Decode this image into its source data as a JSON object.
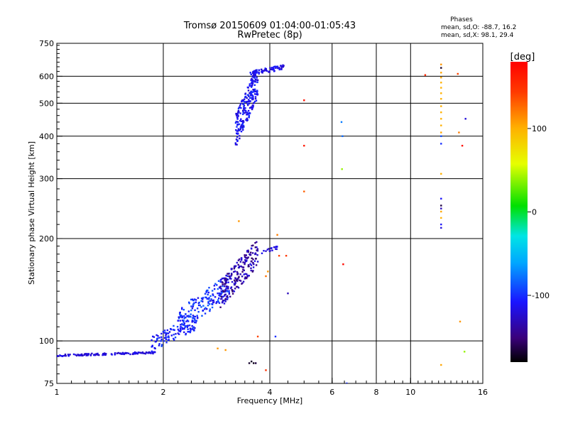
{
  "chart_data": {
    "type": "scatter",
    "title": "Tromsø 20150609 01:04:00-01:05:43",
    "subtitle": "RwPretec (8p)",
    "xlabel": "Frequency [MHz]",
    "ylabel": "Stationary phase Virtual Height [km]",
    "x_scale": "log",
    "y_scale": "log",
    "xlim": [
      1,
      16
    ],
    "ylim": [
      75,
      750
    ],
    "x_ticks": [
      1,
      2,
      4,
      6,
      8,
      10,
      16
    ],
    "x_tick_labels": [
      "1",
      "2",
      "4",
      "6",
      "8",
      "10",
      "16"
    ],
    "y_ticks": [
      75,
      100,
      200,
      300,
      400,
      500,
      600,
      750
    ],
    "y_tick_labels": [
      "75",
      "100",
      "200",
      "300",
      "400",
      "500",
      "600",
      "750"
    ],
    "grid": true,
    "phase_stats": {
      "heading": "Phases",
      "line_o": "mean, sd,O: -88.7, 16.2",
      "line_x": "mean, sd,X:  98.1, 29.4"
    },
    "colorbar": {
      "label": "[deg]",
      "range": [
        -180,
        180
      ],
      "ticks": [
        100,
        0,
        -100
      ],
      "tick_labels": [
        "100",
        "0",
        "-100"
      ],
      "colormap": "rainbow (black→violet→blue→cyan→green→yellow→orange→red)"
    },
    "clusters": [
      {
        "name": "lower-layer-trace",
        "x": [
          1.0,
          1.9
        ],
        "y": [
          90,
          93
        ],
        "count": 140,
        "phase": -120,
        "spread": 10
      },
      {
        "name": "low-oblique-1",
        "x": [
          1.85,
          2.5
        ],
        "y": [
          93,
          120
        ],
        "count": 110,
        "phase": -105,
        "spread": 15
      },
      {
        "name": "low-oblique-2",
        "x": [
          2.2,
          3.1
        ],
        "y": [
          105,
          160
        ],
        "count": 170,
        "phase": -100,
        "spread": 18
      },
      {
        "name": "low-oblique-3",
        "x": [
          2.9,
          3.7
        ],
        "y": [
          125,
          200
        ],
        "count": 190,
        "phase": -135,
        "spread": 22
      },
      {
        "name": "f-trace",
        "x": [
          3.2,
          3.7
        ],
        "y": [
          370,
          650
        ],
        "count": 230,
        "phase": -112,
        "spread": 15
      },
      {
        "name": "f-top",
        "x": [
          3.5,
          4.4
        ],
        "y": [
          600,
          650
        ],
        "count": 60,
        "phase": -115,
        "spread": 12
      },
      {
        "name": "mid-cluster",
        "x": [
          3.8,
          4.2
        ],
        "y": [
          180,
          190
        ],
        "count": 18,
        "phase": -118,
        "spread": 10
      }
    ],
    "points": [
      {
        "x": 3.27,
        "y": 225,
        "phase": 110
      },
      {
        "x": 4.2,
        "y": 205,
        "phase": 120
      },
      {
        "x": 3.9,
        "y": 155,
        "phase": 125
      },
      {
        "x": 3.95,
        "y": 160,
        "phase": 110
      },
      {
        "x": 4.25,
        "y": 178,
        "phase": 140
      },
      {
        "x": 4.45,
        "y": 178,
        "phase": 145
      },
      {
        "x": 4.5,
        "y": 138,
        "phase": -130
      },
      {
        "x": 3.7,
        "y": 103,
        "phase": 140
      },
      {
        "x": 3.9,
        "y": 82,
        "phase": 150
      },
      {
        "x": 4.15,
        "y": 103,
        "phase": -100
      },
      {
        "x": 3.0,
        "y": 94,
        "phase": 110
      },
      {
        "x": 2.85,
        "y": 95,
        "phase": 110
      },
      {
        "x": 3.55,
        "y": 87,
        "phase": -170
      },
      {
        "x": 3.6,
        "y": 86,
        "phase": -175
      },
      {
        "x": 3.65,
        "y": 86,
        "phase": -165
      },
      {
        "x": 3.5,
        "y": 86,
        "phase": -170
      },
      {
        "x": 5.0,
        "y": 510,
        "phase": 170
      },
      {
        "x": 5.0,
        "y": 375,
        "phase": 165
      },
      {
        "x": 5.0,
        "y": 275,
        "phase": 130
      },
      {
        "x": 6.45,
        "y": 168,
        "phase": 175
      },
      {
        "x": 6.4,
        "y": 320,
        "phase": 40
      },
      {
        "x": 6.42,
        "y": 400,
        "phase": -80
      },
      {
        "x": 6.38,
        "y": 440,
        "phase": -75
      },
      {
        "x": 6.6,
        "y": 75,
        "phase": -100
      },
      {
        "x": 11.0,
        "y": 605,
        "phase": 155
      },
      {
        "x": 12.2,
        "y": 650,
        "phase": 110
      },
      {
        "x": 12.2,
        "y": 635,
        "phase": -170
      },
      {
        "x": 12.2,
        "y": 615,
        "phase": 105
      },
      {
        "x": 12.2,
        "y": 595,
        "phase": 105
      },
      {
        "x": 12.2,
        "y": 575,
        "phase": 100
      },
      {
        "x": 12.2,
        "y": 555,
        "phase": 100
      },
      {
        "x": 12.2,
        "y": 535,
        "phase": 100
      },
      {
        "x": 12.2,
        "y": 515,
        "phase": 100
      },
      {
        "x": 12.2,
        "y": 490,
        "phase": 100
      },
      {
        "x": 12.2,
        "y": 470,
        "phase": 100
      },
      {
        "x": 12.2,
        "y": 450,
        "phase": 100
      },
      {
        "x": 12.2,
        "y": 430,
        "phase": 100
      },
      {
        "x": 12.2,
        "y": 410,
        "phase": 105
      },
      {
        "x": 12.2,
        "y": 400,
        "phase": -90
      },
      {
        "x": 12.2,
        "y": 380,
        "phase": -100
      },
      {
        "x": 12.2,
        "y": 310,
        "phase": 100
      },
      {
        "x": 12.2,
        "y": 262,
        "phase": -110
      },
      {
        "x": 12.2,
        "y": 250,
        "phase": -165
      },
      {
        "x": 12.2,
        "y": 245,
        "phase": -130
      },
      {
        "x": 12.2,
        "y": 240,
        "phase": 105
      },
      {
        "x": 12.2,
        "y": 230,
        "phase": 100
      },
      {
        "x": 12.2,
        "y": 220,
        "phase": -110
      },
      {
        "x": 12.2,
        "y": 215,
        "phase": -120
      },
      {
        "x": 12.2,
        "y": 85,
        "phase": 105
      },
      {
        "x": 13.6,
        "y": 610,
        "phase": 140
      },
      {
        "x": 14.3,
        "y": 450,
        "phase": -120
      },
      {
        "x": 13.7,
        "y": 410,
        "phase": 120
      },
      {
        "x": 14.0,
        "y": 375,
        "phase": 170
      },
      {
        "x": 13.8,
        "y": 114,
        "phase": 110
      },
      {
        "x": 14.2,
        "y": 93,
        "phase": 40
      }
    ]
  }
}
